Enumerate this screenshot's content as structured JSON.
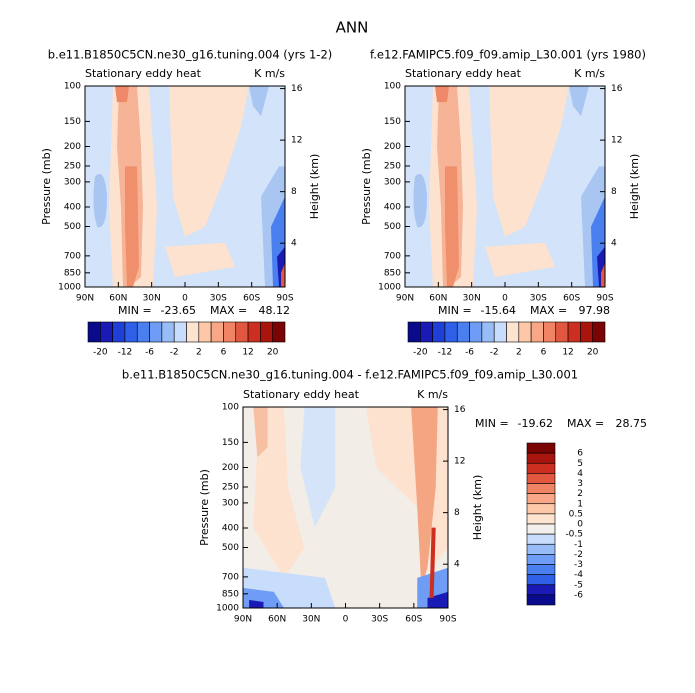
{
  "title": "ANN",
  "chart_data": [
    {
      "type": "contour",
      "subtitle": "b.e11.B1850C5CN.ne30_g16.tuning.004 (yrs 1-2)",
      "left_label": "Stationary eddy heat",
      "right_label": "K m/s",
      "y_label": "Pressure (mb)",
      "y2_label": "Height (km)",
      "xlim": [
        90,
        -90
      ],
      "xticks": [
        {
          "value": 90,
          "label": "90N"
        },
        {
          "value": 60,
          "label": "60N"
        },
        {
          "value": 30,
          "label": "30N"
        },
        0,
        {
          "value": -30,
          "label": "30S"
        },
        {
          "value": -60,
          "label": "60S"
        },
        {
          "value": -90,
          "label": "90S"
        }
      ],
      "ylim": [
        1000,
        100
      ],
      "log_scale": true,
      "yticks": [
        100,
        150,
        200,
        250,
        300,
        400,
        500,
        700,
        850,
        1000
      ],
      "y2lim": [
        0.6,
        16.2
      ],
      "y2ticks": [
        4,
        8,
        12,
        16
      ],
      "min_text": "MIN =",
      "min": -23.65,
      "max_text": "MAX =",
      "max": 48.12,
      "colorbar": {
        "orientation": "horizontal",
        "labels": [
          -20,
          -12,
          -6,
          -2,
          2,
          6,
          12,
          20
        ],
        "colors": [
          "#0a0a8c",
          "#1a1ab4",
          "#1f3fd6",
          "#2e5fe6",
          "#4a7ff0",
          "#6f9df5",
          "#98bcf8",
          "#c8dcfb",
          "#fde4d0",
          "#fcc8a8",
          "#f8a888",
          "#f08465",
          "#e2573f",
          "#cc2e1f",
          "#a8140e",
          "#7a0404"
        ]
      }
    },
    {
      "type": "contour",
      "subtitle": "f.e12.FAMIPC5.f09_f09.amip_L30.001 (yrs 1980)",
      "left_label": "Stationary eddy heat",
      "right_label": "K m/s",
      "y_label": "Pressure (mb)",
      "y2_label": "Height (km)",
      "xlim": [
        90,
        -90
      ],
      "xticks": [
        {
          "value": 90,
          "label": "90N"
        },
        {
          "value": 60,
          "label": "60N"
        },
        {
          "value": 30,
          "label": "30N"
        },
        0,
        {
          "value": -30,
          "label": "30S"
        },
        {
          "value": -60,
          "label": "60S"
        },
        {
          "value": -90,
          "label": "90S"
        }
      ],
      "ylim": [
        1000,
        100
      ],
      "log_scale": true,
      "yticks": [
        100,
        150,
        200,
        250,
        300,
        400,
        500,
        700,
        850,
        1000
      ],
      "y2lim": [
        0.6,
        16.2
      ],
      "y2ticks": [
        4,
        8,
        12,
        16
      ],
      "min_text": "MIN =",
      "min": -15.64,
      "max_text": "MAX =",
      "max": 97.98,
      "colorbar": {
        "orientation": "horizontal",
        "labels": [
          -20,
          -12,
          -6,
          -2,
          2,
          6,
          12,
          20
        ],
        "colors": [
          "#0a0a8c",
          "#1a1ab4",
          "#1f3fd6",
          "#2e5fe6",
          "#4a7ff0",
          "#6f9df5",
          "#98bcf8",
          "#c8dcfb",
          "#fde4d0",
          "#fcc8a8",
          "#f8a888",
          "#f08465",
          "#e2573f",
          "#cc2e1f",
          "#a8140e",
          "#7a0404"
        ]
      }
    },
    {
      "type": "contour",
      "subtitle": "b.e11.B1850C5CN.ne30_g16.tuning.004 - f.e12.FAMIPC5.f09_f09.amip_L30.001",
      "left_label": "Stationary eddy heat",
      "right_label": "K m/s",
      "y_label": "Pressure (mb)",
      "y2_label": "Height (km)",
      "xlim": [
        90,
        -90
      ],
      "xticks": [
        {
          "value": 90,
          "label": "90N"
        },
        {
          "value": 60,
          "label": "60N"
        },
        {
          "value": 30,
          "label": "30N"
        },
        0,
        {
          "value": -30,
          "label": "30S"
        },
        {
          "value": -60,
          "label": "60S"
        },
        {
          "value": -90,
          "label": "90S"
        }
      ],
      "ylim": [
        1000,
        100
      ],
      "log_scale": true,
      "yticks": [
        100,
        150,
        200,
        250,
        300,
        400,
        500,
        700,
        850,
        1000
      ],
      "y2lim": [
        0.6,
        16.2
      ],
      "y2ticks": [
        4,
        8,
        12,
        16
      ],
      "min_text": "MIN =",
      "min": -19.62,
      "max_text": "MAX =",
      "max": 28.75,
      "colorbar": {
        "orientation": "vertical",
        "labels": [
          6,
          5,
          4,
          3,
          2,
          1,
          0.5,
          0,
          -0.5,
          -1,
          -2,
          -3,
          -4,
          -5,
          -6
        ],
        "colors": [
          "#7a0404",
          "#a8140e",
          "#cc2e1f",
          "#e2573f",
          "#f08465",
          "#f8a888",
          "#fcc8a8",
          "#fde4d0",
          "#f3efec",
          "#c8dcfb",
          "#98bcf8",
          "#6f9df5",
          "#4a7ff0",
          "#2e5fe6",
          "#1a1ab4",
          "#0a0a8c"
        ]
      }
    }
  ]
}
